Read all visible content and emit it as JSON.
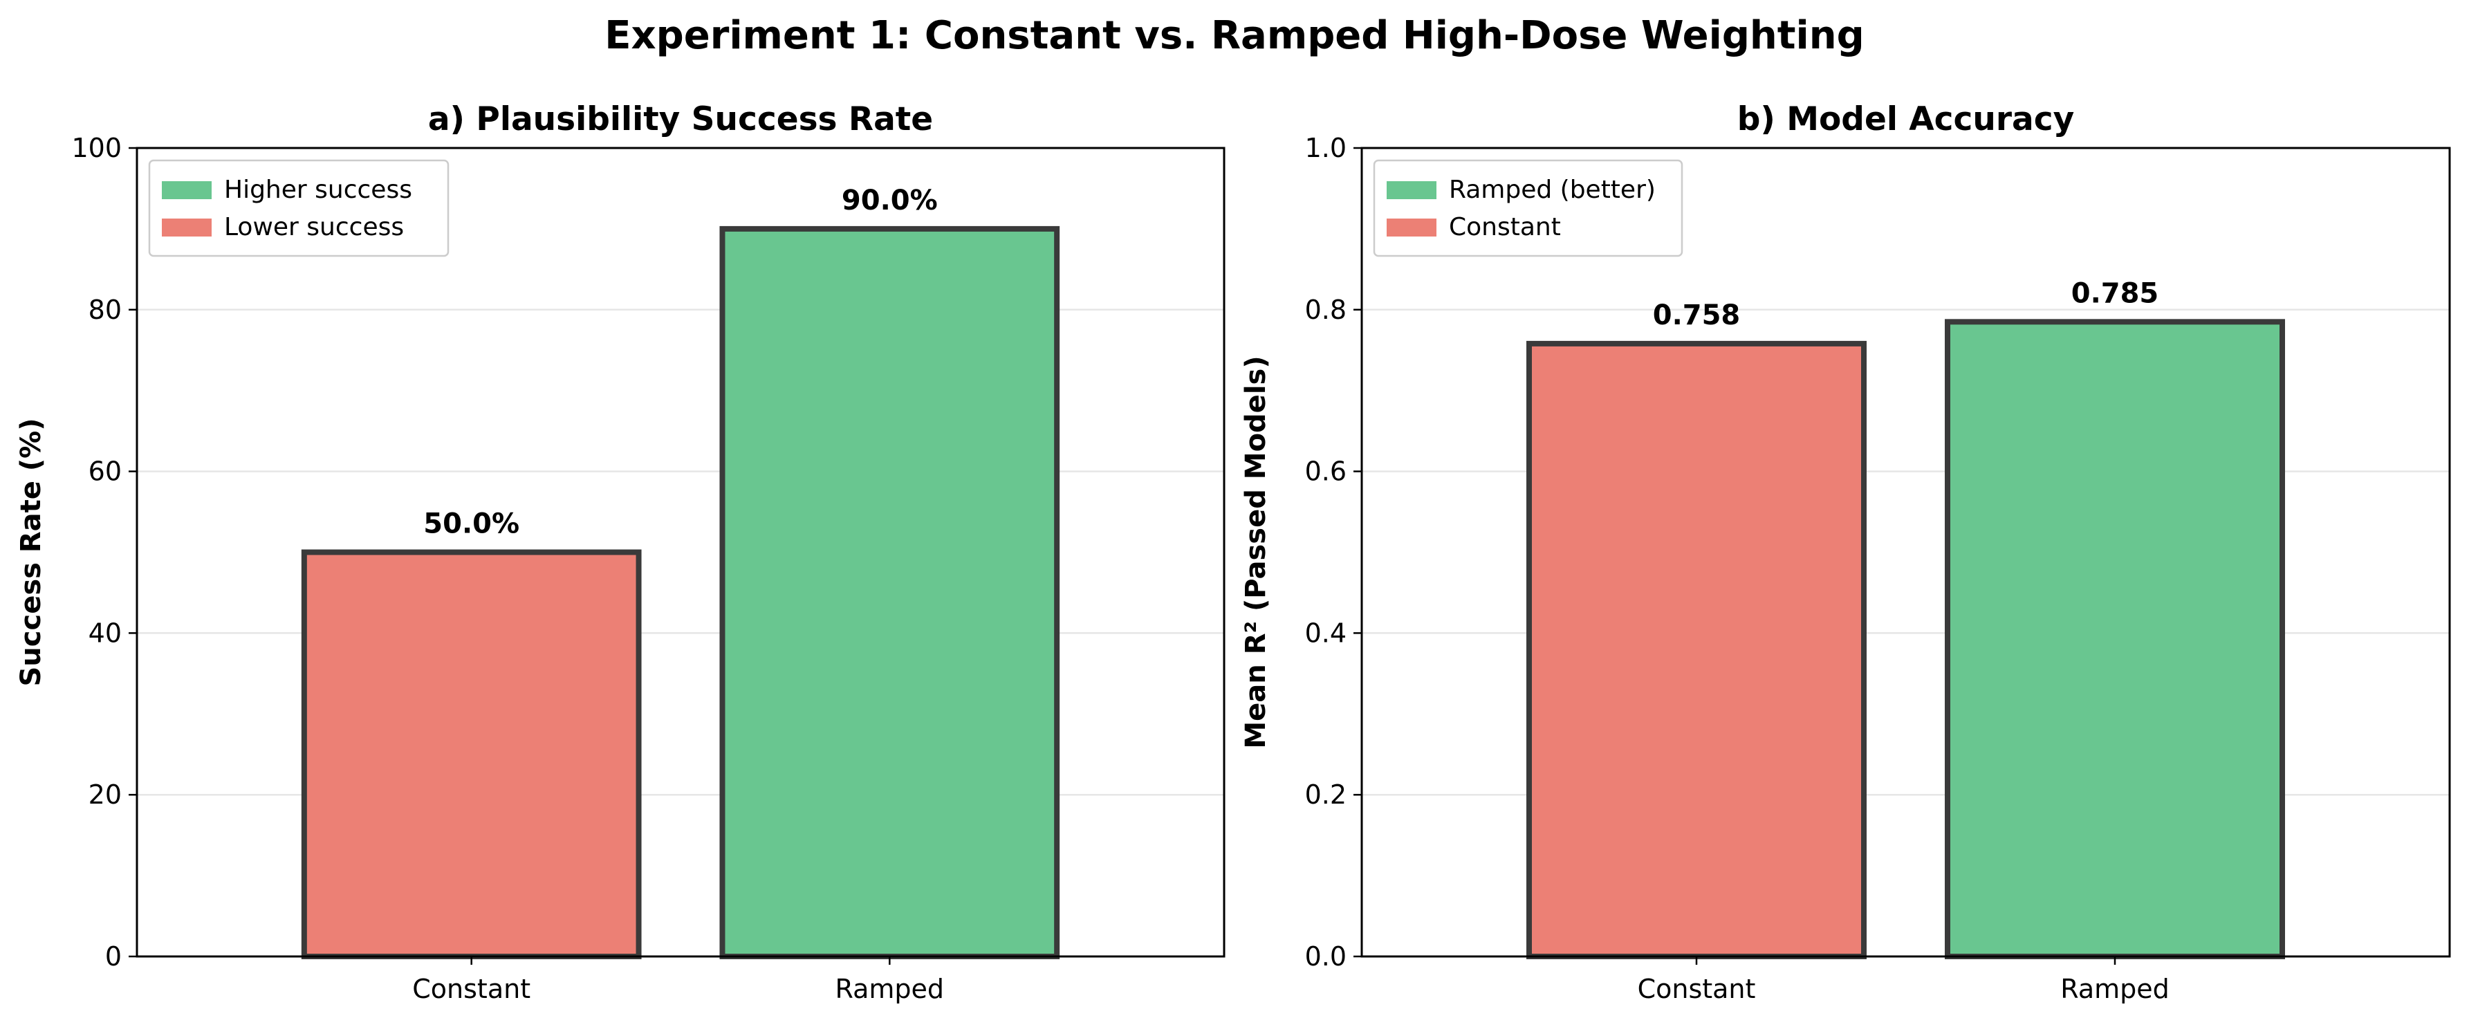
{
  "figure": {
    "title": "Experiment 1: Constant vs. Ramped High-Dose Weighting"
  },
  "colors": {
    "green": "#69c690",
    "red": "#ec8075",
    "edge": "#3a3a3a",
    "grid": "#e6e6e6"
  },
  "chart_data": [
    {
      "type": "bar",
      "title": "a) Plausibility Success Rate",
      "xlabel": "",
      "ylabel": "Success Rate (%)",
      "ylim": [
        0,
        100
      ],
      "yticks": [
        "0",
        "20",
        "40",
        "60",
        "80",
        "100"
      ],
      "categories": [
        "Constant",
        "Ramped"
      ],
      "values": [
        50.0,
        90.0
      ],
      "value_labels": [
        "50.0%",
        "90.0%"
      ],
      "bar_colors": [
        "red",
        "green"
      ],
      "grid": "horizontal",
      "legend": {
        "position": "top-left",
        "entries": [
          {
            "label": "Higher success",
            "color": "green"
          },
          {
            "label": "Lower success",
            "color": "red"
          }
        ]
      }
    },
    {
      "type": "bar",
      "title": "b) Model Accuracy",
      "xlabel": "",
      "ylabel": "Mean R² (Passed Models)",
      "ylim": [
        0,
        1.0
      ],
      "yticks": [
        "0.0",
        "0.2",
        "0.4",
        "0.6",
        "0.8",
        "1.0"
      ],
      "categories": [
        "Constant",
        "Ramped"
      ],
      "values": [
        0.758,
        0.785
      ],
      "value_labels": [
        "0.758",
        "0.785"
      ],
      "bar_colors": [
        "red",
        "green"
      ],
      "grid": "horizontal",
      "legend": {
        "position": "top-left",
        "entries": [
          {
            "label": "Ramped (better)",
            "color": "green"
          },
          {
            "label": "Constant",
            "color": "red"
          }
        ]
      }
    }
  ]
}
